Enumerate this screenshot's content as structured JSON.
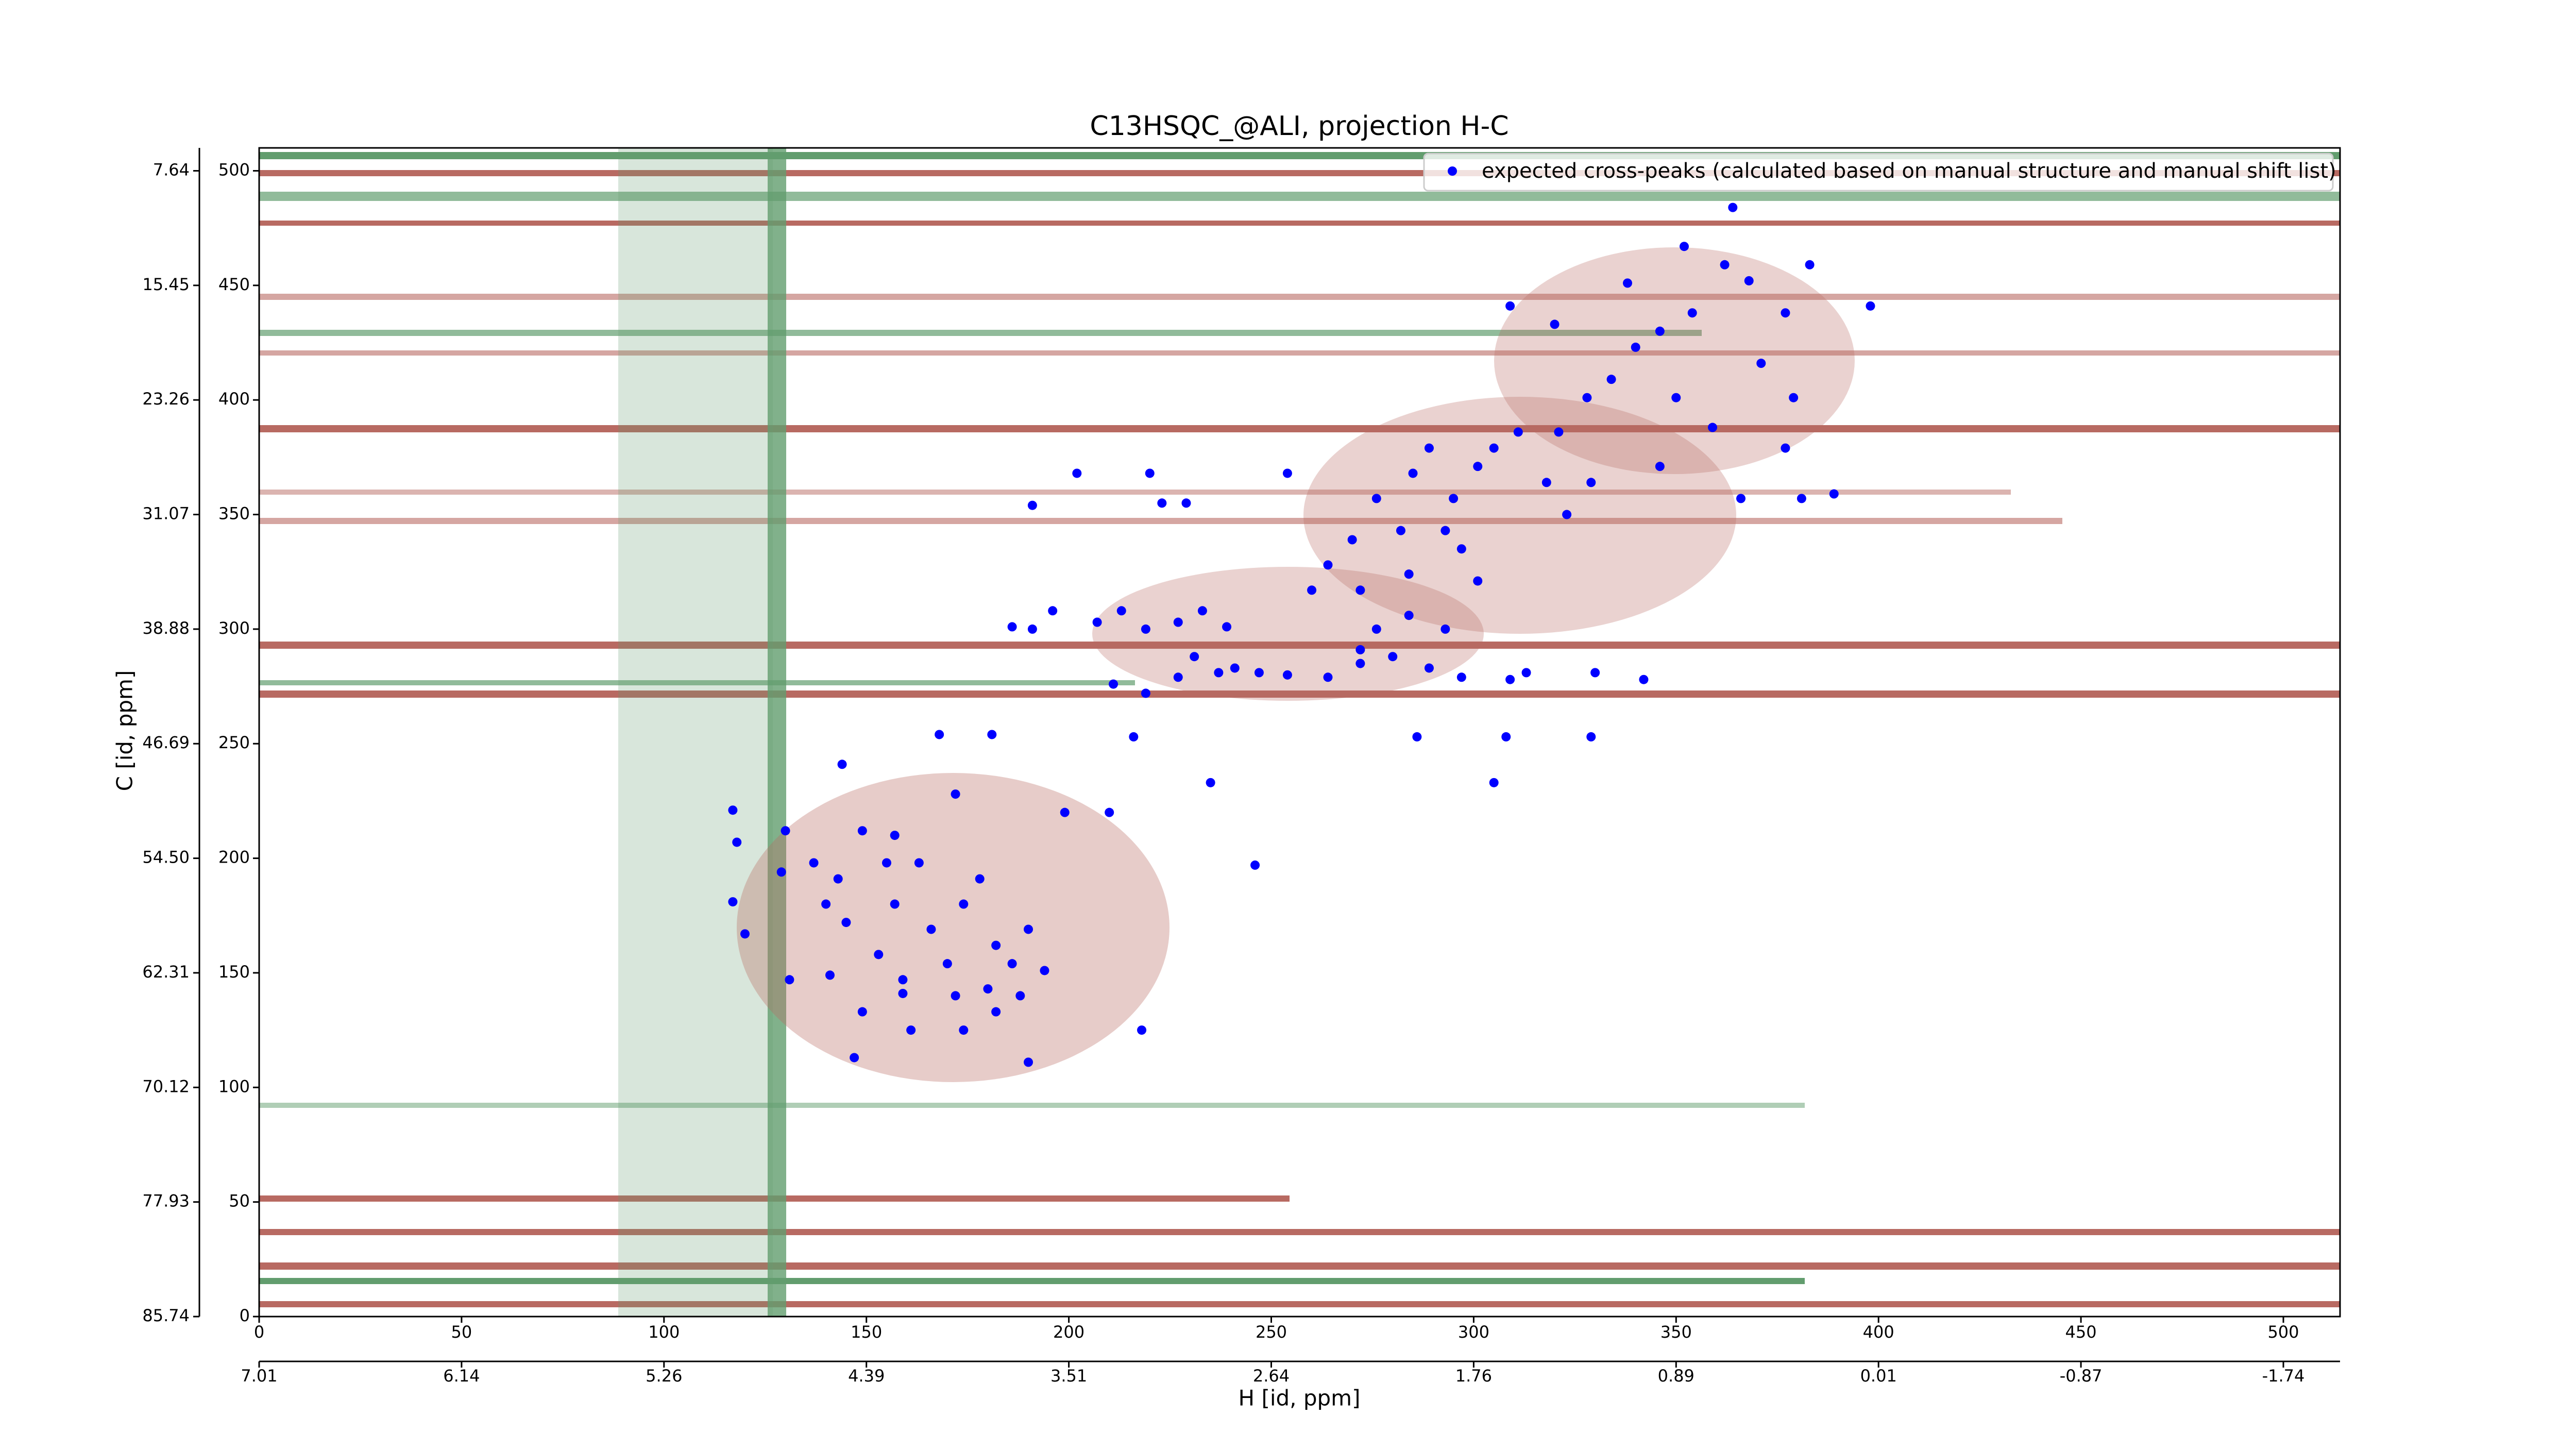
{
  "chart_data": {
    "type": "scatter",
    "title": "C13HSQC_@ALI, projection H-C",
    "xlabel": "H [id, ppm]",
    "ylabel": "C [id, ppm]",
    "legend": "upper right",
    "xlim": [
      0,
      514
    ],
    "ylim": [
      0,
      510
    ],
    "xticks": [
      0,
      50,
      100,
      150,
      200,
      250,
      300,
      350,
      400,
      450,
      500
    ],
    "yticks": [
      0,
      50,
      100,
      150,
      200,
      250,
      300,
      350,
      400,
      450,
      500
    ],
    "x2ticks": [
      {
        "value": 0,
        "label": "7.01"
      },
      {
        "value": 50,
        "label": "6.14"
      },
      {
        "value": 100,
        "label": "5.26"
      },
      {
        "value": 150,
        "label": "4.39"
      },
      {
        "value": 200,
        "label": "3.51"
      },
      {
        "value": 250,
        "label": "2.64"
      },
      {
        "value": 300,
        "label": "1.76"
      },
      {
        "value": 350,
        "label": "0.89"
      },
      {
        "value": 400,
        "label": "0.01"
      },
      {
        "value": 450,
        "label": "-0.87"
      },
      {
        "value": 500,
        "label": "-1.74"
      }
    ],
    "y2ticks": [
      {
        "value": 0,
        "label": "85.74"
      },
      {
        "value": 50,
        "label": "77.93"
      },
      {
        "value": 100,
        "label": "70.12"
      },
      {
        "value": 150,
        "label": "62.31"
      },
      {
        "value": 200,
        "label": "54.50"
      },
      {
        "value": 250,
        "label": "46.69"
      },
      {
        "value": 300,
        "label": "38.88"
      },
      {
        "value": 350,
        "label": "31.07"
      },
      {
        "value": 400,
        "label": "23.26"
      },
      {
        "value": 450,
        "label": "15.45"
      },
      {
        "value": 500,
        "label": "7.64"
      }
    ],
    "series": [
      {
        "name": "expected cross-peaks (calculated based on manual structure and manual shift list)",
        "color": "#0000ff",
        "x": [
          117,
          118,
          117,
          120,
          130,
          131,
          129,
          137,
          140,
          143,
          145,
          149,
          155,
          157,
          153,
          149,
          147,
          159,
          161,
          166,
          170,
          172,
          174,
          178,
          182,
          180,
          186,
          188,
          194,
          190,
          182,
          190,
          172,
          168,
          181,
          144,
          157,
          163,
          141,
          218,
          159,
          174,
          199,
          210,
          235,
          246,
          186,
          196,
          191,
          207,
          213,
          219,
          227,
          233,
          239,
          231,
          237,
          227,
          211,
          219,
          241,
          247,
          254,
          264,
          272,
          280,
          289,
          297,
          309,
          313,
          330,
          342,
          216,
          286,
          308,
          329,
          305,
          260,
          264,
          270,
          276,
          285,
          289,
          295,
          301,
          305,
          311,
          318,
          321,
          328,
          334,
          340,
          346,
          354,
          362,
          368,
          377,
          383,
          398,
          309,
          320,
          338,
          352,
          364,
          371,
          379,
          377,
          359,
          350,
          346,
          366,
          389,
          381,
          282,
          293,
          297,
          301,
          284,
          272,
          276,
          284,
          293,
          272,
          323,
          329,
          223,
          229,
          220,
          254,
          202,
          191
        ],
        "y": [
          221,
          207,
          181,
          167,
          212,
          147,
          194,
          198,
          180,
          191,
          172,
          212,
          198,
          180,
          158,
          133,
          113,
          147,
          125,
          169,
          154,
          140,
          180,
          191,
          162,
          143,
          154,
          140,
          151,
          169,
          133,
          111,
          228,
          254,
          254,
          241,
          210,
          198,
          149,
          125,
          141,
          125,
          220,
          220,
          233,
          197,
          301,
          308,
          300,
          303,
          308,
          300,
          303,
          308,
          301,
          288,
          281,
          279,
          276,
          272,
          283,
          281,
          280,
          279,
          285,
          288,
          283,
          279,
          278,
          281,
          281,
          278,
          253,
          253,
          253,
          253,
          233,
          317,
          328,
          339,
          357,
          368,
          379,
          357,
          371,
          379,
          386,
          364,
          386,
          401,
          409,
          423,
          430,
          438,
          459,
          452,
          438,
          459,
          441,
          441,
          433,
          451,
          467,
          484,
          416,
          401,
          379,
          388,
          401,
          371,
          357,
          359,
          357,
          343,
          343,
          335,
          321,
          324,
          317,
          300,
          306,
          300,
          291,
          350,
          364,
          355,
          355,
          368,
          368,
          368,
          354
        ]
      }
    ]
  }
}
